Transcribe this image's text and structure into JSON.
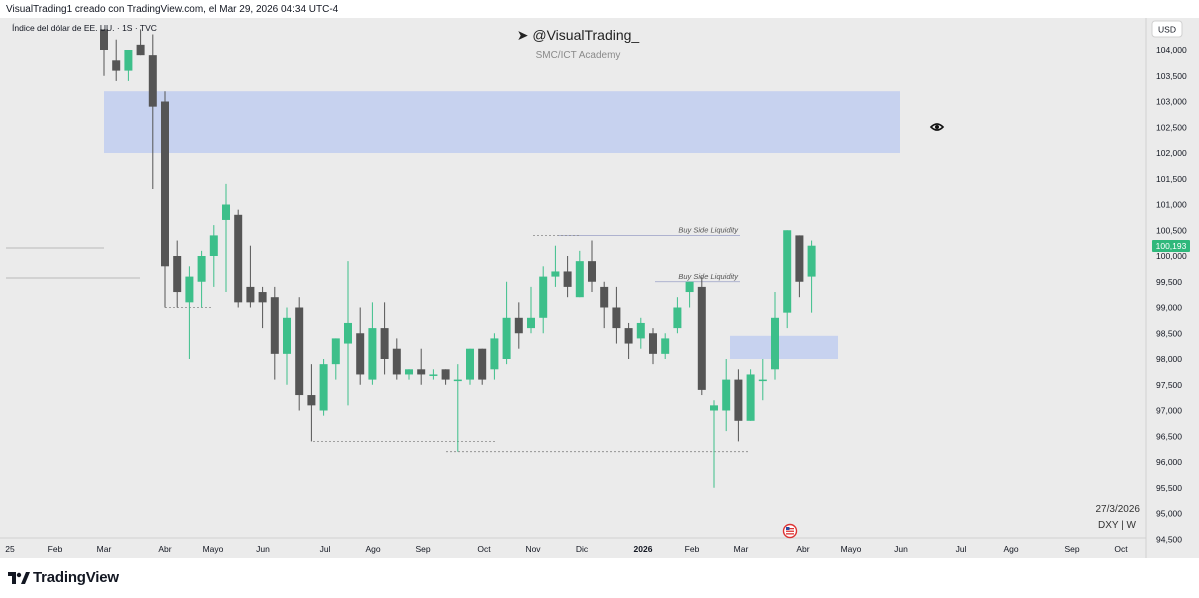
{
  "header": {
    "created_text": "VisualTrading1 creado con TradingView.com, el Mar 29, 2026 04:34 UTC-4"
  },
  "symbol_line": "Índice del dólar de EE. UU. · 1S · TVC",
  "watermark": {
    "handle": "➤ @VisualTrading_",
    "subtitle": "SMC/ICT Academy"
  },
  "currency": "USD",
  "price_label": "100,193",
  "date_stamp": "27/3/2026",
  "ticker_interval": "DXY | W",
  "annotations": {
    "bsl_upper": "Buy Side Liquidity",
    "bsl_lower": "Buy Side Liquidity"
  },
  "footer": {
    "brand": "TradingView"
  },
  "colors": {
    "up": "#3dbf8a",
    "down": "#555555",
    "zone": "#c5d1ef",
    "background": "#ebebeb",
    "price_badge": "#2fb87b"
  },
  "chart_data": {
    "type": "candlestick",
    "symbol": "DXY",
    "interval": "1W",
    "ylim": [
      94.4,
      104.4
    ],
    "price_axis": [
      "104,000",
      "103,500",
      "103,000",
      "102,500",
      "102,000",
      "101,500",
      "101,000",
      "100,500",
      "100,000",
      "99,500",
      "99,000",
      "98,500",
      "98,000",
      "97,500",
      "97,000",
      "96,500",
      "96,000",
      "95,500",
      "95,000",
      "94,500"
    ],
    "time_axis": [
      "25",
      "Feb",
      "Mar",
      "Abr",
      "Mayo",
      "Jun",
      "Jul",
      "Ago",
      "Sep",
      "Oct",
      "Nov",
      "Dic",
      "2026",
      "Feb",
      "Mar",
      "Abr",
      "Mayo",
      "Jun",
      "Jul",
      "Ago",
      "Sep",
      "Oct"
    ],
    "candles": [
      {
        "o": 104.4,
        "h": 104.4,
        "c": 104.0,
        "l": 103.5
      },
      {
        "o": 103.8,
        "h": 104.2,
        "c": 103.6,
        "l": 103.4
      },
      {
        "o": 103.6,
        "h": 104.0,
        "c": 104.0,
        "l": 103.4
      },
      {
        "o": 104.1,
        "h": 104.4,
        "c": 103.9,
        "l": 103.9
      },
      {
        "o": 103.9,
        "h": 104.3,
        "c": 102.9,
        "l": 101.3
      },
      {
        "o": 103.0,
        "h": 103.2,
        "c": 99.8,
        "l": 99.0
      },
      {
        "o": 100.0,
        "h": 100.3,
        "c": 99.3,
        "l": 99.0
      },
      {
        "o": 99.1,
        "h": 99.8,
        "c": 99.6,
        "l": 98.0
      },
      {
        "o": 99.5,
        "h": 100.1,
        "c": 100.0,
        "l": 99.0
      },
      {
        "o": 100.0,
        "h": 100.6,
        "c": 100.4,
        "l": 99.4
      },
      {
        "o": 100.7,
        "h": 101.4,
        "c": 101.0,
        "l": 99.3
      },
      {
        "o": 100.8,
        "h": 100.9,
        "c": 99.1,
        "l": 99.0
      },
      {
        "o": 99.4,
        "h": 100.2,
        "c": 99.1,
        "l": 99.0
      },
      {
        "o": 99.3,
        "h": 99.4,
        "c": 99.1,
        "l": 98.6
      },
      {
        "o": 99.2,
        "h": 99.4,
        "c": 98.1,
        "l": 97.6
      },
      {
        "o": 98.1,
        "h": 99.0,
        "c": 98.8,
        "l": 97.5
      },
      {
        "o": 99.0,
        "h": 99.2,
        "c": 97.3,
        "l": 97.0
      },
      {
        "o": 97.3,
        "h": 97.9,
        "c": 97.1,
        "l": 96.4
      },
      {
        "o": 97.0,
        "h": 98.0,
        "c": 97.9,
        "l": 96.9
      },
      {
        "o": 97.9,
        "h": 98.4,
        "c": 98.4,
        "l": 97.6
      },
      {
        "o": 98.3,
        "h": 99.9,
        "c": 98.7,
        "l": 97.1
      },
      {
        "o": 98.5,
        "h": 99.0,
        "c": 97.7,
        "l": 97.5
      },
      {
        "o": 97.6,
        "h": 99.1,
        "c": 98.6,
        "l": 97.5
      },
      {
        "o": 98.6,
        "h": 99.1,
        "c": 98.0,
        "l": 97.7
      },
      {
        "o": 98.2,
        "h": 98.4,
        "c": 97.7,
        "l": 97.6
      },
      {
        "o": 97.7,
        "h": 97.8,
        "c": 97.8,
        "l": 97.6
      },
      {
        "o": 97.8,
        "h": 98.2,
        "c": 97.7,
        "l": 97.5
      },
      {
        "o": 97.7,
        "h": 97.8,
        "c": 97.7,
        "l": 97.6
      },
      {
        "o": 97.8,
        "h": 97.8,
        "c": 97.6,
        "l": 97.5
      },
      {
        "o": 97.6,
        "h": 97.9,
        "c": 97.6,
        "l": 96.2
      },
      {
        "o": 97.6,
        "h": 98.2,
        "c": 98.2,
        "l": 97.5
      },
      {
        "o": 98.2,
        "h": 98.2,
        "c": 97.6,
        "l": 97.5
      },
      {
        "o": 97.8,
        "h": 98.5,
        "c": 98.4,
        "l": 97.6
      },
      {
        "o": 98.0,
        "h": 99.5,
        "c": 98.8,
        "l": 97.9
      },
      {
        "o": 98.8,
        "h": 99.1,
        "c": 98.5,
        "l": 98.2
      },
      {
        "o": 98.6,
        "h": 99.4,
        "c": 98.8,
        "l": 98.5
      },
      {
        "o": 98.8,
        "h": 99.8,
        "c": 99.6,
        "l": 98.5
      },
      {
        "o": 99.6,
        "h": 100.2,
        "c": 99.7,
        "l": 99.4
      },
      {
        "o": 99.7,
        "h": 100.0,
        "c": 99.4,
        "l": 99.2
      },
      {
        "o": 99.2,
        "h": 100.1,
        "c": 99.9,
        "l": 99.2
      },
      {
        "o": 99.9,
        "h": 100.3,
        "c": 99.5,
        "l": 99.3
      },
      {
        "o": 99.4,
        "h": 99.5,
        "c": 99.0,
        "l": 98.6
      },
      {
        "o": 99.0,
        "h": 99.4,
        "c": 98.6,
        "l": 98.3
      },
      {
        "o": 98.6,
        "h": 98.7,
        "c": 98.3,
        "l": 98.0
      },
      {
        "o": 98.4,
        "h": 98.8,
        "c": 98.7,
        "l": 98.2
      },
      {
        "o": 98.5,
        "h": 98.6,
        "c": 98.1,
        "l": 97.9
      },
      {
        "o": 98.1,
        "h": 98.5,
        "c": 98.4,
        "l": 98.0
      },
      {
        "o": 98.6,
        "h": 99.2,
        "c": 99.0,
        "l": 98.5
      },
      {
        "o": 99.3,
        "h": 99.5,
        "c": 99.5,
        "l": 99.0
      },
      {
        "o": 99.4,
        "h": 99.6,
        "c": 97.4,
        "l": 97.3
      },
      {
        "o": 97.0,
        "h": 97.2,
        "c": 97.1,
        "l": 95.5
      },
      {
        "o": 97.0,
        "h": 98.0,
        "c": 97.6,
        "l": 96.6
      },
      {
        "o": 97.6,
        "h": 97.8,
        "c": 96.8,
        "l": 96.4
      },
      {
        "o": 96.8,
        "h": 97.8,
        "c": 97.7,
        "l": 96.8
      },
      {
        "o": 97.6,
        "h": 98.0,
        "c": 97.6,
        "l": 97.2
      },
      {
        "o": 97.8,
        "h": 99.3,
        "c": 98.8,
        "l": 97.6
      },
      {
        "o": 98.9,
        "h": 100.5,
        "c": 100.5,
        "l": 98.6
      },
      {
        "o": 100.4,
        "h": 100.4,
        "c": 99.5,
        "l": 99.2
      },
      {
        "o": 99.6,
        "h": 100.3,
        "c": 100.2,
        "l": 98.9
      }
    ],
    "zones": [
      {
        "label": "",
        "price_low": 102.0,
        "price_high": 103.2
      },
      {
        "label": "",
        "price_low": 98.0,
        "price_high": 98.45
      }
    ],
    "levels": [
      {
        "label": "Buy Side Liquidity",
        "price": 100.4
      },
      {
        "label": "Buy Side Liquidity",
        "price": 99.5
      }
    ],
    "last_price": 100.193
  }
}
